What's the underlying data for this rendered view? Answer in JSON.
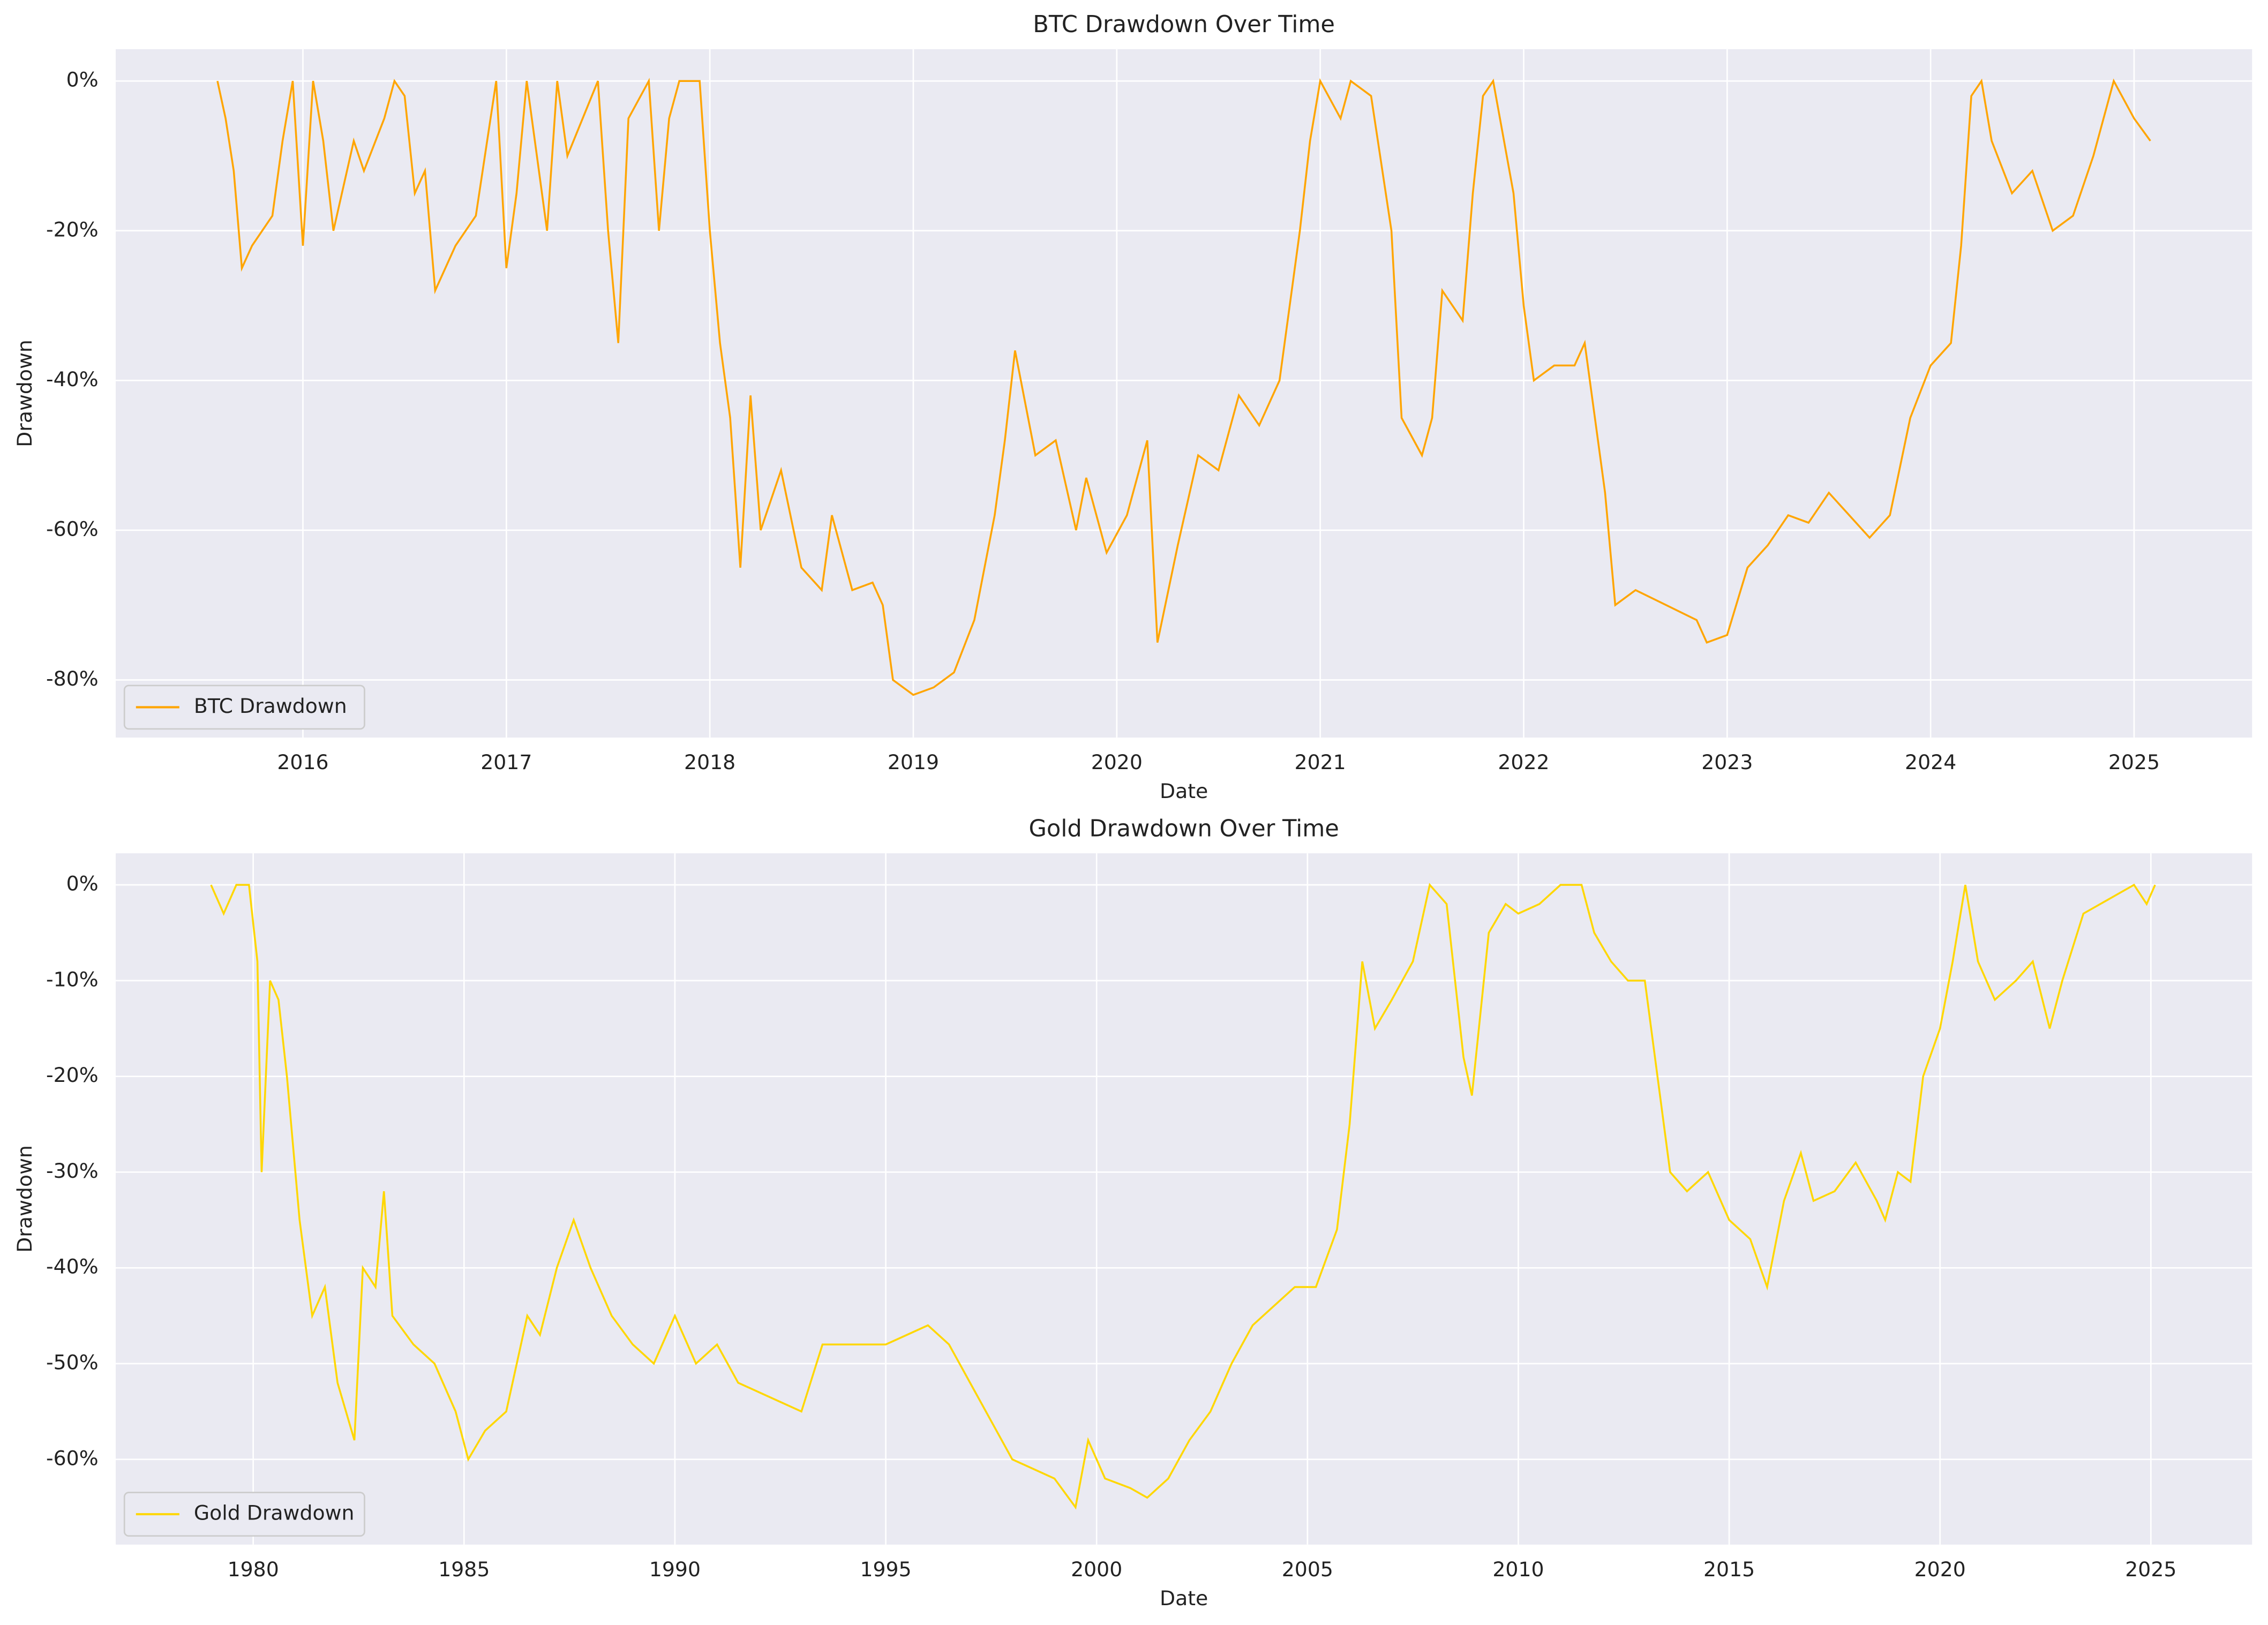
{
  "chart_data": [
    {
      "type": "line",
      "title": "BTC Drawdown Over Time",
      "xlabel": "Date",
      "ylabel": "Drawdown",
      "x": [
        2015.58,
        2015.62,
        2015.66,
        2015.7,
        2015.75,
        2015.85,
        2015.9,
        2015.95,
        2016.0,
        2016.05,
        2016.1,
        2016.15,
        2016.25,
        2016.3,
        2016.4,
        2016.45,
        2016.5,
        2016.55,
        2016.6,
        2016.65,
        2016.75,
        2016.85,
        2016.95,
        2017.0,
        2017.05,
        2017.1,
        2017.2,
        2017.25,
        2017.3,
        2017.45,
        2017.5,
        2017.55,
        2017.6,
        2017.7,
        2017.75,
        2017.8,
        2017.85,
        2017.95,
        2018.0,
        2018.05,
        2018.1,
        2018.15,
        2018.2,
        2018.25,
        2018.35,
        2018.45,
        2018.55,
        2018.6,
        2018.7,
        2018.8,
        2018.85,
        2018.9,
        2019.0,
        2019.1,
        2019.2,
        2019.3,
        2019.4,
        2019.45,
        2019.5,
        2019.6,
        2019.7,
        2019.8,
        2019.85,
        2019.95,
        2020.05,
        2020.15,
        2020.2,
        2020.3,
        2020.4,
        2020.5,
        2020.6,
        2020.7,
        2020.8,
        2020.9,
        2020.95,
        2021.0,
        2021.1,
        2021.15,
        2021.25,
        2021.35,
        2021.4,
        2021.5,
        2021.55,
        2021.6,
        2021.7,
        2021.75,
        2021.8,
        2021.85,
        2021.95,
        2022.0,
        2022.05,
        2022.15,
        2022.25,
        2022.3,
        2022.35,
        2022.4,
        2022.45,
        2022.55,
        2022.7,
        2022.85,
        2022.9,
        2023.0,
        2023.1,
        2023.2,
        2023.3,
        2023.4,
        2023.5,
        2023.6,
        2023.7,
        2023.8,
        2023.9,
        2024.0,
        2024.1,
        2024.15,
        2024.2,
        2024.25,
        2024.3,
        2024.4,
        2024.5,
        2024.6,
        2024.7,
        2024.8,
        2024.85,
        2024.9,
        2025.0,
        2025.08
      ],
      "series": [
        {
          "name": "BTC Drawdown",
          "color": "#ffa500",
          "values": [
            0,
            -5,
            -12,
            -25,
            -22,
            -18,
            -8,
            0,
            -22,
            0,
            -8,
            -20,
            -8,
            -12,
            -5,
            0,
            -2,
            -15,
            -12,
            -28,
            -22,
            -18,
            0,
            -25,
            -15,
            0,
            -20,
            0,
            -10,
            0,
            -20,
            -35,
            -5,
            0,
            -20,
            -5,
            0,
            0,
            -20,
            -35,
            -45,
            -65,
            -42,
            -60,
            -52,
            -65,
            -68,
            -58,
            -68,
            -67,
            -70,
            -80,
            -82,
            -81,
            -79,
            -72,
            -58,
            -48,
            -36,
            -50,
            -48,
            -60,
            -53,
            -63,
            -58,
            -48,
            -75,
            -62,
            -50,
            -52,
            -42,
            -46,
            -40,
            -20,
            -8,
            0,
            -5,
            0,
            -2,
            -20,
            -45,
            -50,
            -45,
            -28,
            -32,
            -15,
            -2,
            0,
            -15,
            -30,
            -40,
            -38,
            -38,
            -35,
            -45,
            -55,
            -70,
            -68,
            -70,
            -72,
            -75,
            -74,
            -65,
            -62,
            -58,
            -59,
            -55,
            -58,
            -61,
            -58,
            -45,
            -38,
            -35,
            -22,
            -2,
            0,
            -8,
            -15,
            -12,
            -20,
            -18,
            -10,
            -5,
            0,
            -5,
            -8
          ]
        }
      ],
      "xlim": [
        2015.08,
        2025.58
      ],
      "ylim": [
        -87.7,
        4.25
      ],
      "xticks": [
        2016,
        2017,
        2018,
        2019,
        2020,
        2021,
        2022,
        2023,
        2024,
        2025
      ],
      "yticks": [
        {
          "value": -80,
          "label": "-80%"
        },
        {
          "value": -60,
          "label": "-60%"
        },
        {
          "value": -40,
          "label": "-40%"
        },
        {
          "value": -20,
          "label": "-20%"
        },
        {
          "value": 0,
          "label": "0%"
        }
      ],
      "grid": true,
      "legend": "lower left"
    },
    {
      "type": "line",
      "title": "Gold Drawdown Over Time",
      "xlabel": "Date",
      "ylabel": "Drawdown",
      "x": [
        1979,
        1979.3,
        1979.6,
        1979.9,
        1980.1,
        1980.2,
        1980.4,
        1980.6,
        1980.8,
        1981.1,
        1981.4,
        1981.7,
        1982.0,
        1982.4,
        1982.6,
        1982.9,
        1983.1,
        1983.3,
        1983.8,
        1984.3,
        1984.8,
        1985.1,
        1985.5,
        1986.0,
        1986.5,
        1986.8,
        1987.2,
        1987.6,
        1988.0,
        1988.5,
        1989.0,
        1989.5,
        1990.0,
        1990.5,
        1991.0,
        1991.5,
        1992.0,
        1992.5,
        1993.0,
        1993.5,
        1994.0,
        1994.5,
        1995.0,
        1995.5,
        1996.0,
        1996.5,
        1997.0,
        1997.5,
        1998.0,
        1998.5,
        1999.0,
        1999.5,
        1999.8,
        2000.2,
        2000.8,
        2001.2,
        2001.7,
        2002.2,
        2002.7,
        2003.2,
        2003.7,
        2004.2,
        2004.7,
        2005.2,
        2005.7,
        2006.0,
        2006.3,
        2006.6,
        2007.0,
        2007.5,
        2007.9,
        2008.3,
        2008.7,
        2008.9,
        2009.3,
        2009.7,
        2010.0,
        2010.5,
        2011.0,
        2011.5,
        2011.8,
        2012.2,
        2012.6,
        2013.0,
        2013.3,
        2013.6,
        2014.0,
        2014.5,
        2015.0,
        2015.5,
        2015.9,
        2016.3,
        2016.7,
        2017.0,
        2017.5,
        2018.0,
        2018.5,
        2018.7,
        2019.0,
        2019.3,
        2019.6,
        2020.0,
        2020.3,
        2020.6,
        2020.9,
        2021.3,
        2021.8,
        2022.2,
        2022.6,
        2022.9,
        2023.4,
        2023.8,
        2024.2,
        2024.6,
        2024.9,
        2025.1
      ],
      "series": [
        {
          "name": "Gold Drawdown",
          "color": "#ffd700",
          "values": [
            0,
            -3,
            0,
            0,
            -8,
            -30,
            -10,
            -12,
            -20,
            -35,
            -45,
            -42,
            -52,
            -58,
            -40,
            -42,
            -32,
            -45,
            -48,
            -50,
            -55,
            -60,
            -57,
            -55,
            -45,
            -47,
            -40,
            -35,
            -40,
            -45,
            -48,
            -50,
            -45,
            -50,
            -48,
            -52,
            -53,
            -54,
            -55,
            -48,
            -48,
            -48,
            -48,
            -47,
            -46,
            -48,
            -52,
            -56,
            -60,
            -61,
            -62,
            -65,
            -58,
            -62,
            -63,
            -64,
            -62,
            -58,
            -55,
            -50,
            -46,
            -44,
            -42,
            -42,
            -36,
            -25,
            -8,
            -15,
            -12,
            -8,
            0,
            -2,
            -18,
            -22,
            -5,
            -2,
            -3,
            -2,
            0,
            0,
            -5,
            -8,
            -10,
            -10,
            -20,
            -30,
            -32,
            -30,
            -35,
            -37,
            -42,
            -33,
            -28,
            -33,
            -32,
            -29,
            -33,
            -35,
            -30,
            -31,
            -20,
            -15,
            -8,
            0,
            -8,
            -12,
            -10,
            -8,
            -15,
            -10,
            -3,
            -2,
            -1,
            0,
            -2,
            0
          ]
        }
      ],
      "xlim": [
        1976.74,
        2027.4
      ],
      "ylim": [
        -68.9,
        3.3
      ],
      "xticks": [
        1980,
        1985,
        1990,
        1995,
        2000,
        2005,
        2010,
        2015,
        2020,
        2025
      ],
      "yticks": [
        {
          "value": -60,
          "label": "-60%"
        },
        {
          "value": -50,
          "label": "-50%"
        },
        {
          "value": -40,
          "label": "-40%"
        },
        {
          "value": -30,
          "label": "-30%"
        },
        {
          "value": -20,
          "label": "-20%"
        },
        {
          "value": -10,
          "label": "-10%"
        },
        {
          "value": 0,
          "label": "0%"
        }
      ],
      "grid": true,
      "legend": "lower left"
    }
  ]
}
